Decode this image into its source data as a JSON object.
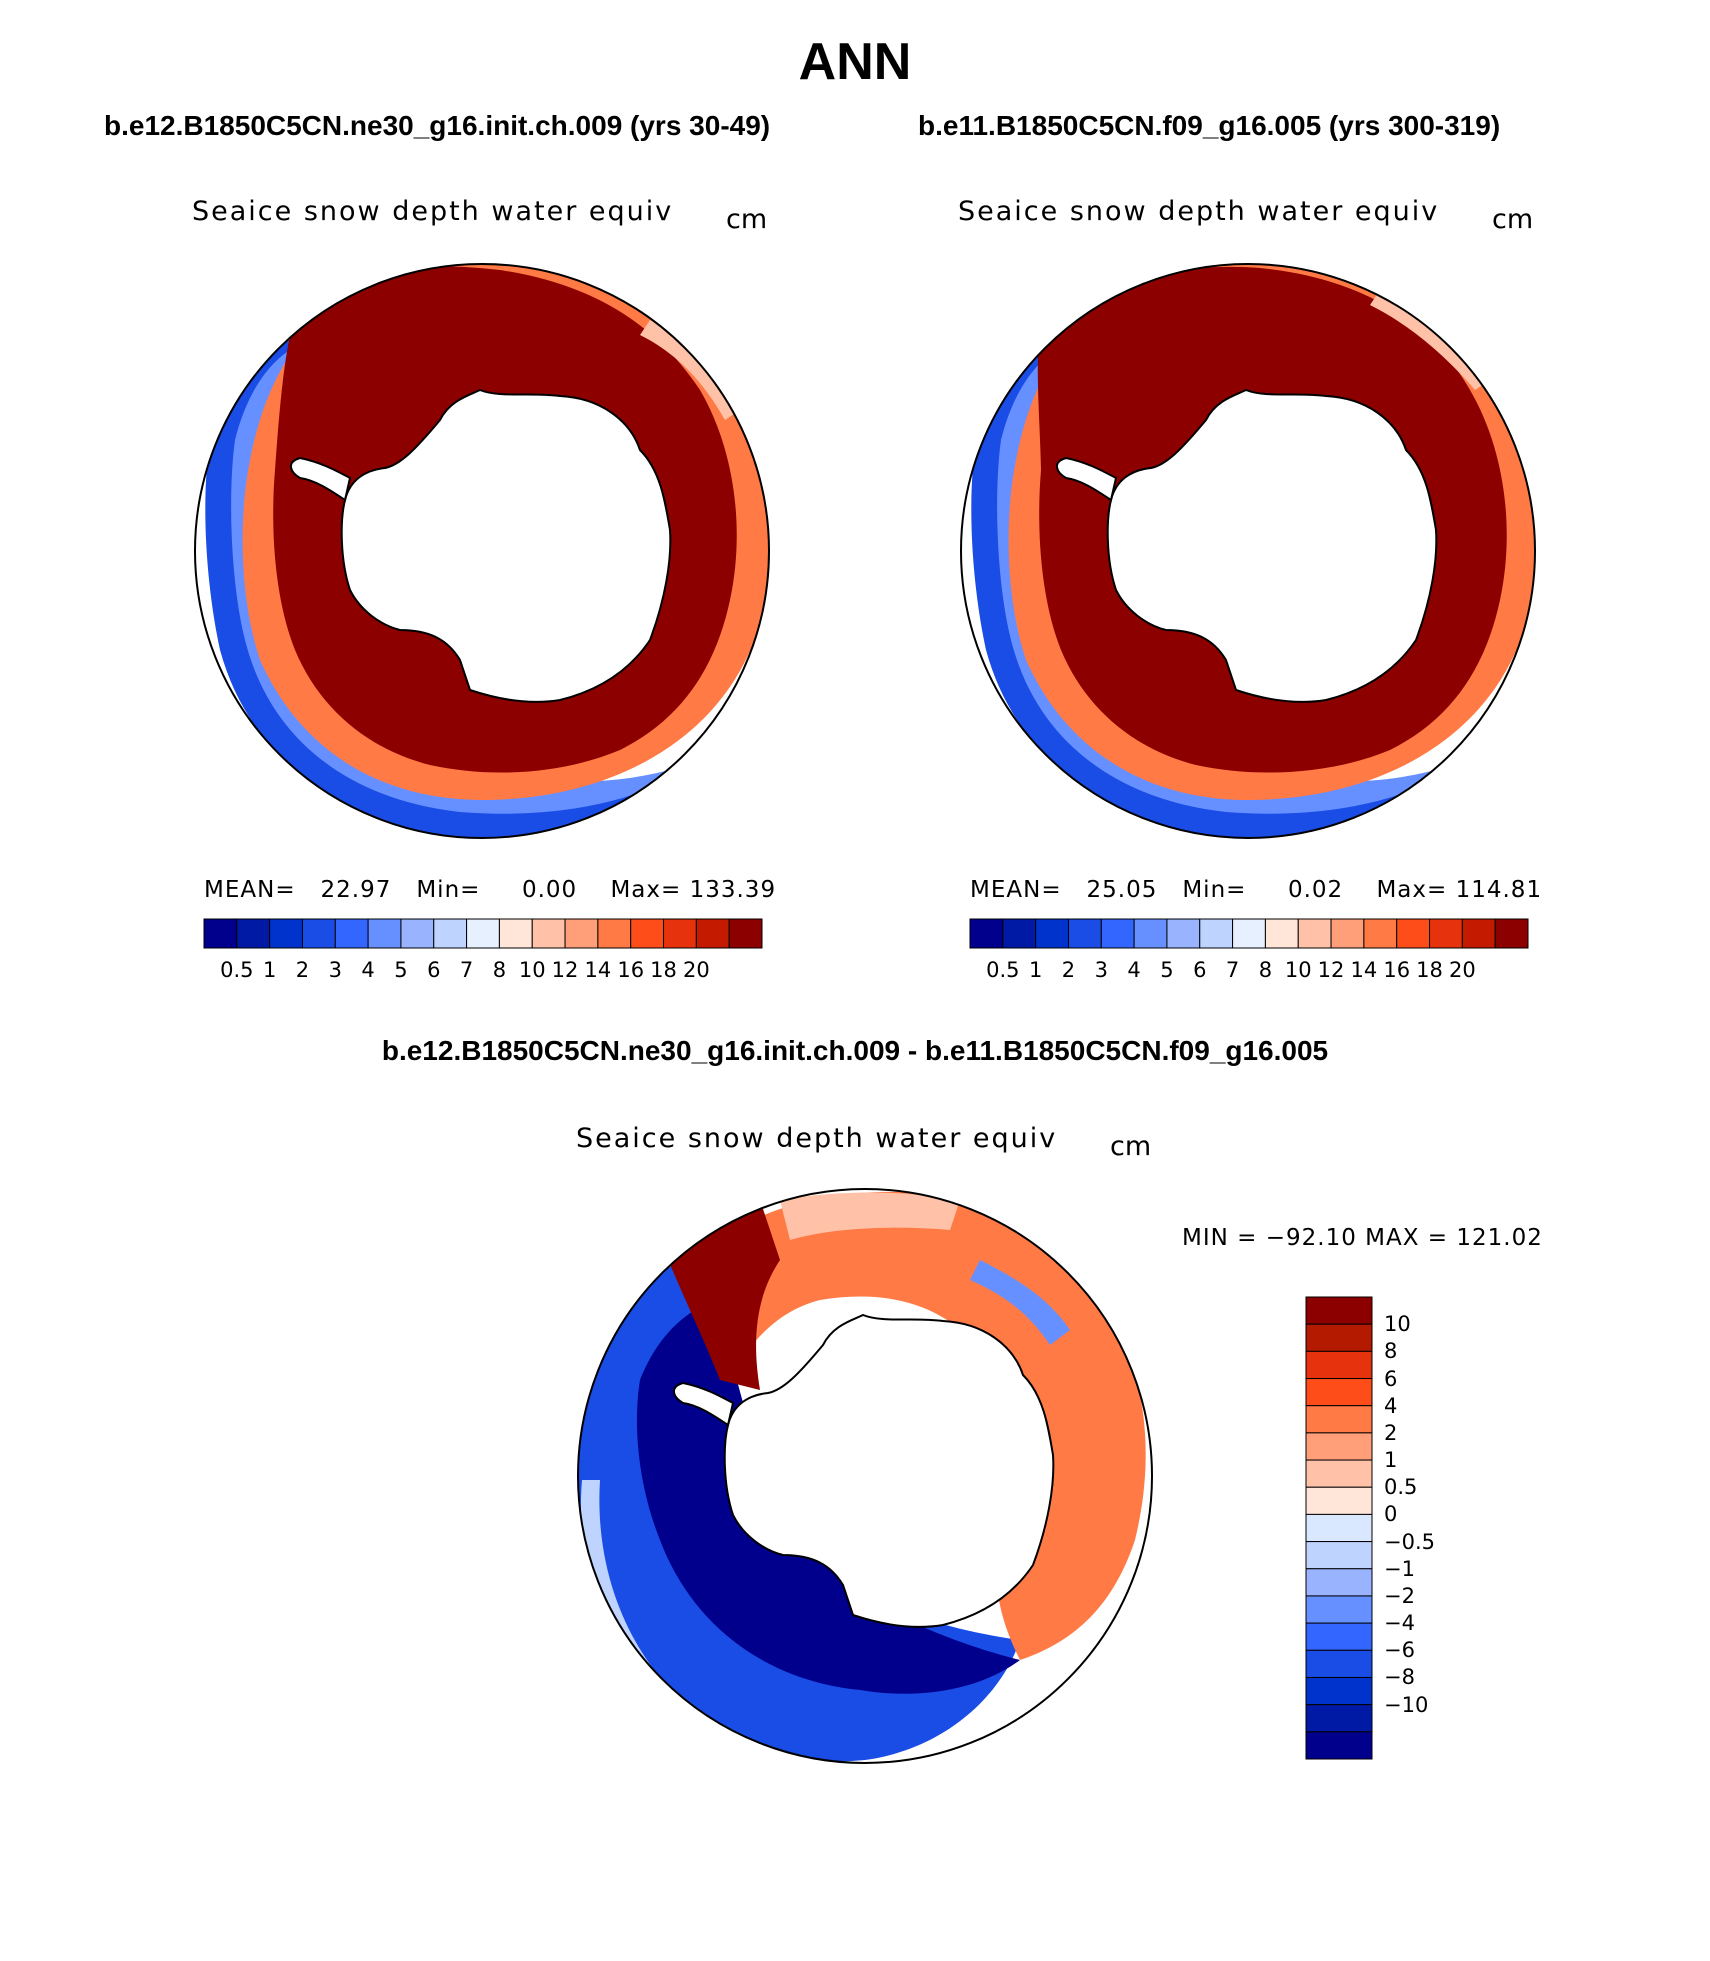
{
  "title": "ANN",
  "panels": [
    {
      "case_name": "b.e12.B1850C5CN.ne30_g16.init.ch.009 (yrs 30-49)",
      "variable": "Seaice snow depth water equiv",
      "units": "cm",
      "mean_label": "MEAN=",
      "mean": "22.97",
      "min_label": "Min=",
      "min": "0.00",
      "max_label": "Max=",
      "max": "133.39"
    },
    {
      "case_name": "b.e11.B1850C5CN.f09_g16.005 (yrs 300-319)",
      "variable": "Seaice snow depth water equiv",
      "units": "cm",
      "mean_label": "MEAN=",
      "mean": "25.05",
      "min_label": "Min=",
      "min": "0.02",
      "max_label": "Max=",
      "max": "114.81"
    }
  ],
  "colorbar": {
    "labels": [
      "0.5",
      "1",
      "2",
      "3",
      "4",
      "5",
      "6",
      "7",
      "8",
      "10",
      "12",
      "14",
      "16",
      "18",
      "20"
    ],
    "colors": [
      "#00008c",
      "#001aa6",
      "#0033cc",
      "#1a4de6",
      "#3366ff",
      "#6690ff",
      "#99b3ff",
      "#bfd3ff",
      "#e6f0ff",
      "#ffe6d9",
      "#ffc2a8",
      "#ff9f7a",
      "#ff7a45",
      "#ff4d1a",
      "#e6330d",
      "#c41a00",
      "#8c0000"
    ]
  },
  "difference": {
    "title": "b.e12.B1850C5CN.ne30_g16.init.ch.009 - b.e11.B1850C5CN.f09_g16.005",
    "variable": "Seaice snow depth water equiv",
    "units": "cm",
    "minmax": "MIN = −92.10 MAX = 121.02",
    "labels": [
      "10",
      "8",
      "6",
      "4",
      "2",
      "1",
      "0.5",
      "0",
      "−0.5",
      "−1",
      "−2",
      "−4",
      "−6",
      "−8",
      "−10"
    ],
    "colors": [
      "#8c0000",
      "#b31a00",
      "#e6330d",
      "#ff4d1a",
      "#ff7a45",
      "#ff9f7a",
      "#ffc2a8",
      "#ffe6d9",
      "#d9e8ff",
      "#bfd3ff",
      "#99b3ff",
      "#6690ff",
      "#3366ff",
      "#1a4de6",
      "#0033cc",
      "#001aa6",
      "#00008c"
    ]
  },
  "palette": {
    "dark_red": "#8c0000",
    "mid_red": "#e6330d",
    "orange": "#ff7a45",
    "light_orange": "#ffb08f",
    "pale": "#ffe6d9",
    "light_blue": "#bfd3ff",
    "mid_blue": "#3366ff",
    "blue": "#0033cc",
    "navy": "#00008c"
  }
}
